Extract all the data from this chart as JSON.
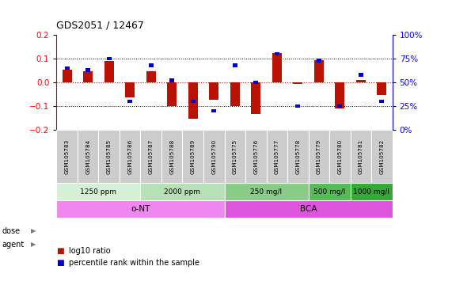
{
  "title": "GDS2051 / 12467",
  "samples": [
    "GSM105783",
    "GSM105784",
    "GSM105785",
    "GSM105786",
    "GSM105787",
    "GSM105788",
    "GSM105789",
    "GSM105790",
    "GSM105775",
    "GSM105776",
    "GSM105777",
    "GSM105778",
    "GSM105779",
    "GSM105780",
    "GSM105781",
    "GSM105782"
  ],
  "log10_ratio": [
    0.055,
    0.047,
    0.09,
    -0.065,
    0.048,
    -0.1,
    -0.155,
    -0.075,
    -0.1,
    -0.135,
    0.125,
    -0.005,
    0.095,
    -0.11,
    0.01,
    -0.055
  ],
  "percentile_rank": [
    65,
    63,
    75,
    30,
    68,
    52,
    30,
    20,
    68,
    50,
    80,
    25,
    73,
    25,
    58,
    30
  ],
  "dose_groups": [
    {
      "label": "1250 ppm",
      "start": 0,
      "end": 4,
      "color": "#d5f0d5"
    },
    {
      "label": "2000 ppm",
      "start": 4,
      "end": 8,
      "color": "#b8e0b8"
    },
    {
      "label": "250 mg/l",
      "start": 8,
      "end": 12,
      "color": "#88cc88"
    },
    {
      "label": "500 mg/l",
      "start": 12,
      "end": 14,
      "color": "#55bb55"
    },
    {
      "label": "1000 mg/l",
      "start": 14,
      "end": 16,
      "color": "#33aa33"
    }
  ],
  "agent_groups": [
    {
      "label": "o-NT",
      "start": 0,
      "end": 8,
      "color": "#ee88ee"
    },
    {
      "label": "BCA",
      "start": 8,
      "end": 16,
      "color": "#dd55dd"
    }
  ],
  "ylim_left": [
    -0.2,
    0.2
  ],
  "ylim_right": [
    0,
    100
  ],
  "yticks_left": [
    -0.2,
    -0.1,
    0.0,
    0.1,
    0.2
  ],
  "yticks_right": [
    0,
    25,
    50,
    75,
    100
  ],
  "bar_color": "#bb1100",
  "dot_color": "#0000cc",
  "legend_red_label": "log10 ratio",
  "legend_blue_label": "percentile rank within the sample",
  "dose_label": "dose",
  "agent_label": "agent",
  "sample_box_color": "#cccccc",
  "sample_box_edge": "#ffffff"
}
